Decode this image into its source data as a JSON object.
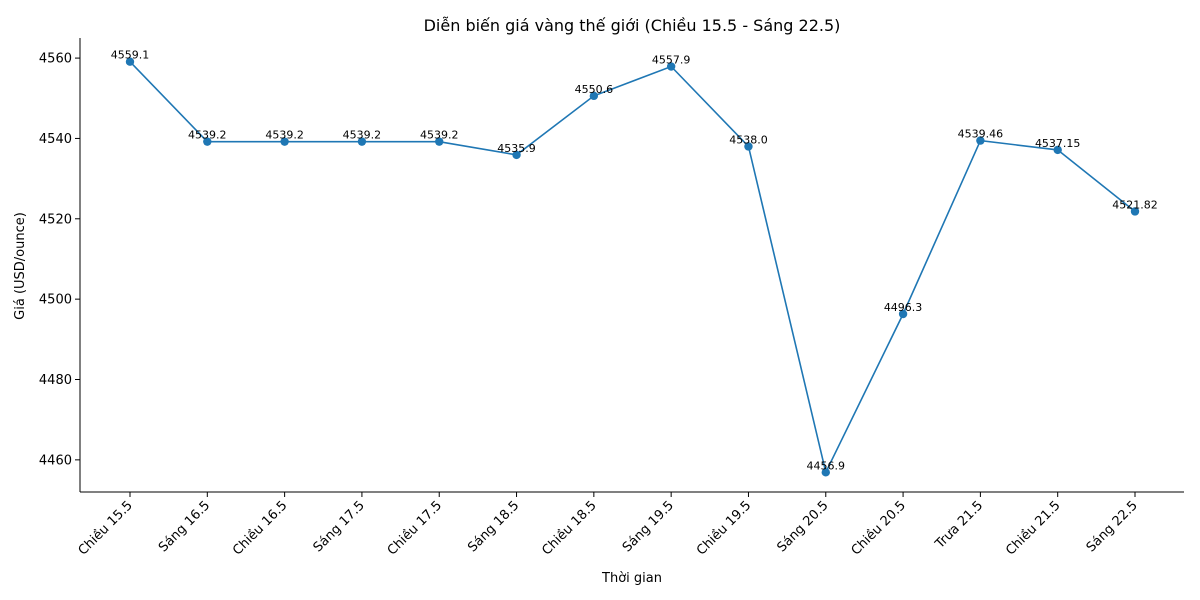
{
  "chart_data": {
    "type": "line",
    "title": "Diễn biến giá vàng thế giới (Chiều 15.5 - Sáng 22.5)",
    "xlabel": "Thời gian",
    "ylabel": "Giá (USD/ounce)",
    "categories": [
      "Chiều 15.5",
      "Sáng 16.5",
      "Chiều 16.5",
      "Sáng 17.5",
      "Chiều 17.5",
      "Sáng 18.5",
      "Chiều 18.5",
      "Sáng 19.5",
      "Chiều 19.5",
      "Sáng 20.5",
      "Chiều 20.5",
      "Trưa 21.5",
      "Chiều 21.5",
      "Sáng 22.5"
    ],
    "values": [
      4559.1,
      4539.2,
      4539.2,
      4539.2,
      4539.2,
      4535.9,
      4550.6,
      4557.9,
      4538.0,
      4456.9,
      4496.3,
      4539.46,
      4537.15,
      4521.82
    ],
    "data_labels": [
      "4559.1",
      "4539.2",
      "4539.2",
      "4539.2",
      "4539.2",
      "4535.9",
      "4550.6",
      "4557.9",
      "4538.0",
      "4456.9",
      "4496.3",
      "4539.46",
      "4537.15",
      "4521.82"
    ],
    "yticks": [
      4460,
      4480,
      4500,
      4520,
      4540,
      4560
    ],
    "ylim": [
      4452,
      4565
    ],
    "grid": false,
    "color": "#1f77b4"
  }
}
